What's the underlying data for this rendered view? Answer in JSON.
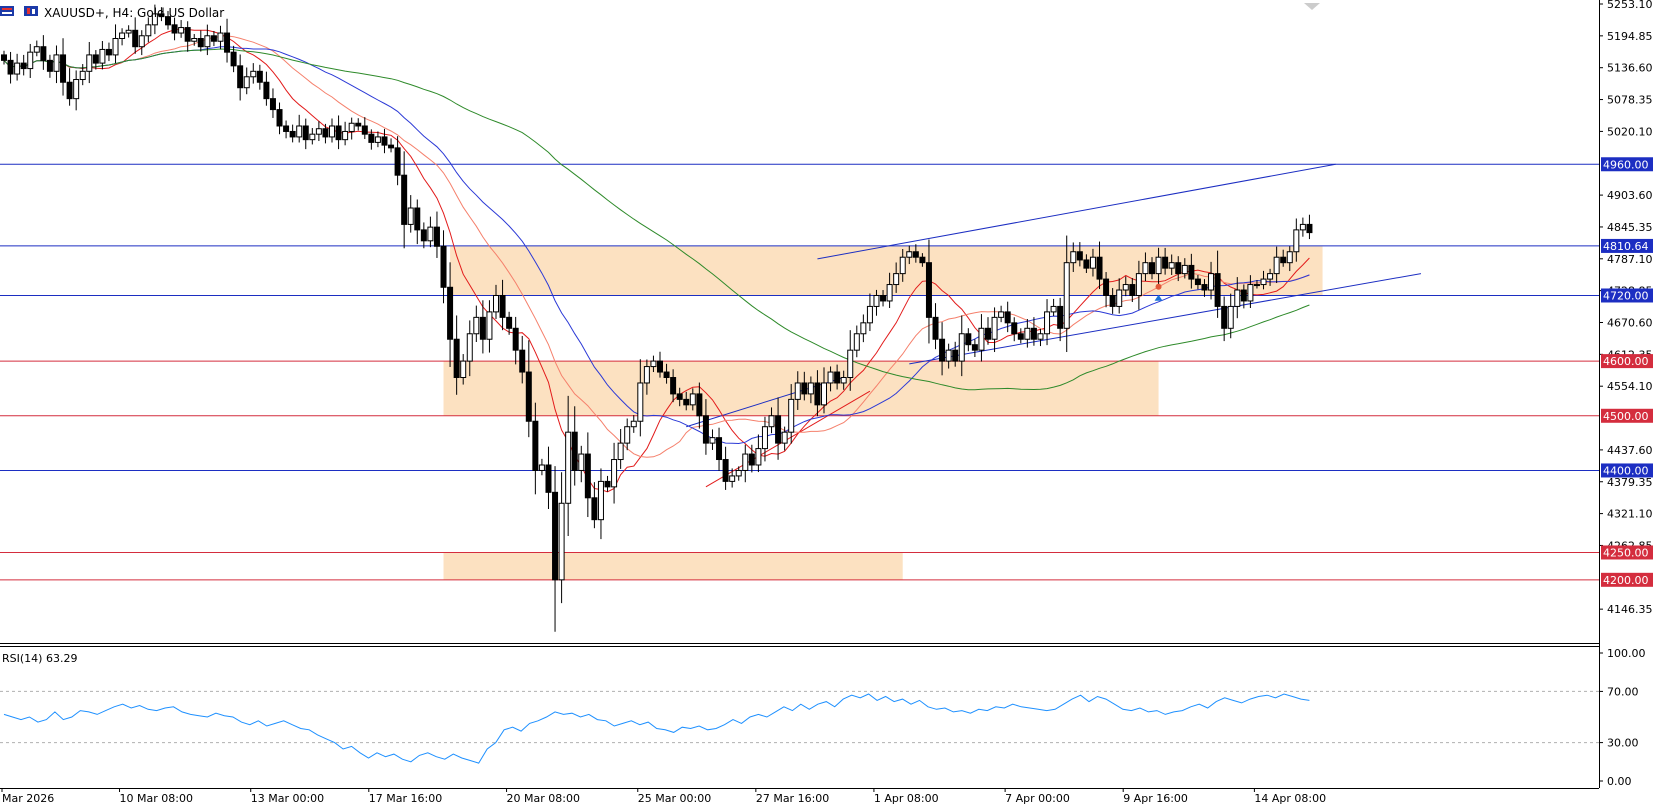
{
  "header": {
    "title": "XAUUSD+, H4:  Gold US Dollar"
  },
  "rsi": {
    "label": "RSI(14) 63.29",
    "levels": [
      "100.00",
      "70.00",
      "30.00",
      "0.00"
    ],
    "values": [
      52,
      50,
      48,
      50,
      46,
      48,
      54,
      48,
      50,
      55,
      54,
      52,
      55,
      58,
      60,
      57,
      59,
      56,
      55,
      57,
      58,
      54,
      52,
      51,
      50,
      53,
      51,
      50,
      46,
      44,
      47,
      43,
      45,
      47,
      44,
      41,
      40,
      36,
      33,
      30,
      25,
      27,
      22,
      18,
      22,
      19,
      21,
      17,
      15,
      20,
      22,
      19,
      17,
      21,
      18,
      16,
      14,
      25,
      30,
      40,
      42,
      39,
      45,
      47,
      50,
      54,
      52,
      53,
      50,
      52,
      48,
      47,
      43,
      45,
      47,
      44,
      46,
      41,
      40,
      38,
      42,
      41,
      43,
      40,
      41,
      44,
      48,
      45,
      50,
      52,
      50,
      54,
      58,
      55,
      60,
      56,
      60,
      62,
      58,
      64,
      67,
      65,
      68,
      63,
      66,
      62,
      64,
      60,
      63,
      58,
      56,
      57,
      54,
      55,
      53,
      56,
      55,
      58,
      57,
      60,
      58,
      57,
      56,
      55,
      56,
      60,
      64,
      67,
      62,
      66,
      64,
      60,
      56,
      55,
      57,
      54,
      55,
      52,
      54,
      55,
      58,
      60,
      57,
      62,
      65,
      63,
      61,
      64,
      66,
      67,
      65,
      68,
      66,
      64,
      63
    ]
  },
  "chart_data": {
    "type": "candlestick",
    "title": "XAUUSD+, H4:  Gold US Dollar",
    "ylim": [
      4088.1,
      5253.1
    ],
    "y_ticks": [
      "5253.10",
      "5194.85",
      "5136.60",
      "5078.35",
      "5020.10",
      "4903.60",
      "4845.35",
      "4787.10",
      "4728.85",
      "4670.60",
      "4612.35",
      "4554.10",
      "4437.60",
      "4379.35",
      "4321.10",
      "4262.85",
      "4146.35"
    ],
    "x_ticks": [
      "Mar 2026",
      "10 Mar 08:00",
      "13 Mar 00:00",
      "17 Mar 16:00",
      "20 Mar 08:00",
      "25 Mar 00:00",
      "27 Mar 16:00",
      "1 Apr 08:00",
      "7 Apr 00:00",
      "9 Apr 16:00",
      "14 Apr 08:00"
    ],
    "closes": [
      5150,
      5125,
      5145,
      5135,
      5165,
      5175,
      5150,
      5130,
      5160,
      5110,
      5080,
      5115,
      5130,
      5160,
      5145,
      5170,
      5160,
      5190,
      5200,
      5205,
      5175,
      5195,
      5215,
      5235,
      5230,
      5215,
      5200,
      5210,
      5185,
      5190,
      5175,
      5195,
      5185,
      5200,
      5165,
      5140,
      5100,
      5120,
      5130,
      5110,
      5080,
      5060,
      5030,
      5020,
      5010,
      5030,
      5005,
      5015,
      5025,
      5010,
      5030,
      5005,
      5020,
      5035,
      5030,
      5015,
      5000,
      5010,
      4995,
      4990,
      4940,
      4850,
      4880,
      4840,
      4820,
      4845,
      4810,
      4735,
      4640,
      4570,
      4600,
      4650,
      4680,
      4640,
      4690,
      4720,
      4680,
      4660,
      4620,
      4580,
      4490,
      4400,
      4410,
      4360,
      4200,
      4340,
      4470,
      4400,
      4430,
      4350,
      4310,
      4380,
      4370,
      4420,
      4450,
      4480,
      4490,
      4560,
      4590,
      4600,
      4580,
      4570,
      4540,
      4530,
      4520,
      4540,
      4500,
      4450,
      4460,
      4420,
      4380,
      4390,
      4400,
      4430,
      4410,
      4440,
      4480,
      4500,
      4450,
      4470,
      4530,
      4560,
      4540,
      4560,
      4520,
      4560,
      4580,
      4560,
      4570,
      4620,
      4650,
      4670,
      4700,
      4720,
      4710,
      4740,
      4760,
      4790,
      4800,
      4790,
      4780,
      4680,
      4640,
      4600,
      4620,
      4600,
      4650,
      4630,
      4620,
      4660,
      4640,
      4680,
      4690,
      4670,
      4650,
      4640,
      4660,
      4640,
      4650,
      4690,
      4700,
      4660,
      4780,
      4800,
      4785,
      4770,
      4790,
      4750,
      4720,
      4700,
      4730,
      4740,
      4720,
      4760,
      4780,
      4760,
      4790,
      4770,
      4780,
      4760,
      4775,
      4750,
      4740,
      4730,
      4760,
      4700,
      4660,
      4700,
      4730,
      4710,
      4740,
      4740,
      4750,
      4760,
      4790,
      4780,
      4800,
      4840,
      4850,
      4835
    ],
    "moving_averages": [
      {
        "name": "red",
        "color": "#e21b1b"
      },
      {
        "name": "salmon",
        "color": "#f5806c"
      },
      {
        "name": "blue",
        "color": "#2b39d6"
      },
      {
        "name": "green",
        "color": "#2e8a2a"
      }
    ],
    "horizontal_levels": [
      {
        "value": 4960.0,
        "label": "4960.00",
        "color": "#1c2ec2"
      },
      {
        "value": 4810.64,
        "label": "4810.64",
        "color": "#1c2ec2"
      },
      {
        "value": 4720.0,
        "label": "4720.00",
        "color": "#1c2ec2"
      },
      {
        "value": 4600.0,
        "label": "4600.00",
        "color": "#d42d3e"
      },
      {
        "value": 4500.0,
        "label": "4500.00",
        "color": "#d42d3e"
      },
      {
        "value": 4400.0,
        "label": "4400.00",
        "color": "#1c2ec2"
      },
      {
        "value": 4250.0,
        "label": "4250.00",
        "color": "#d42d3e"
      },
      {
        "value": 4200.0,
        "label": "4200.00",
        "color": "#d42d3e"
      }
    ],
    "zones": [
      {
        "from": 4720,
        "to": 4810,
        "start": 68,
        "end": 201,
        "color": "#fce1c1"
      },
      {
        "from": 4500,
        "to": 4600,
        "start": 67,
        "end": 176,
        "color": "#fce1c1"
      },
      {
        "from": 4200,
        "to": 4250,
        "start": 67,
        "end": 137,
        "color": "#fce1c1"
      }
    ],
    "trendlines": [
      {
        "x1": 124,
        "y1": 4787,
        "x2": 203,
        "y2": 4960,
        "color": "#1c2ec2"
      },
      {
        "x1": 138,
        "y1": 4595,
        "x2": 216,
        "y2": 4760,
        "color": "#1c2ec2"
      },
      {
        "x1": 104,
        "y1": 4480,
        "x2": 128,
        "y2": 4570,
        "color": "#1c2ec2"
      },
      {
        "x1": 107,
        "y1": 4370,
        "x2": 132,
        "y2": 4545,
        "color": "#e21b1b"
      }
    ]
  }
}
